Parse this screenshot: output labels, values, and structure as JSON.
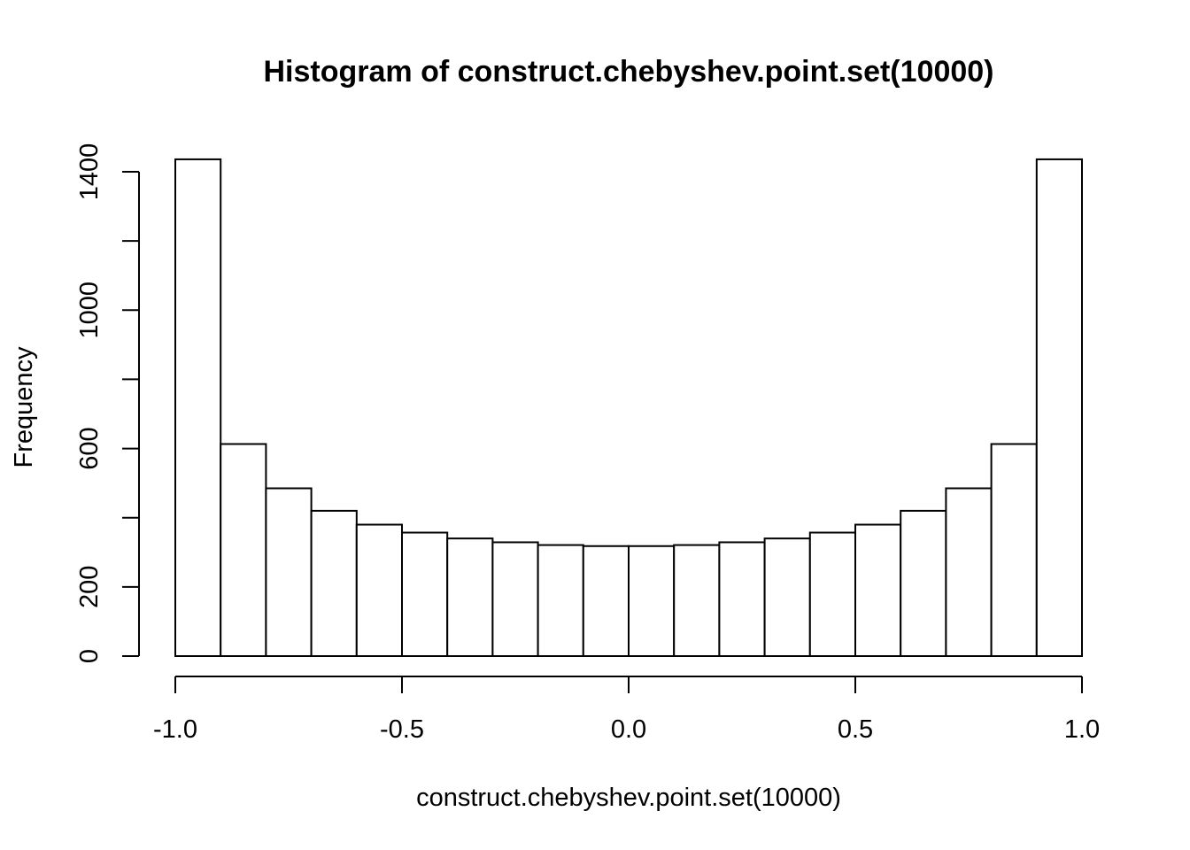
{
  "chart_data": {
    "type": "bar",
    "title": "Histogram of construct.chebyshev.point.set(10000)",
    "xlabel": "construct.chebyshev.point.set(10000)",
    "ylabel": "Frequency",
    "bin_edges": [
      -1.0,
      -0.9,
      -0.8,
      -0.7,
      -0.6,
      -0.5,
      -0.4,
      -0.3,
      -0.2,
      -0.1,
      0.0,
      0.1,
      0.2,
      0.3,
      0.4,
      0.5,
      0.6,
      0.7,
      0.8,
      0.9,
      1.0
    ],
    "values": [
      1436,
      613,
      485,
      420,
      380,
      357,
      340,
      329,
      321,
      318,
      318,
      321,
      329,
      340,
      357,
      380,
      420,
      485,
      613,
      1436
    ],
    "xlim": [
      -1.0,
      1.0
    ],
    "ylim": [
      0,
      1400
    ],
    "x_ticks": [
      -1.0,
      -0.5,
      0.0,
      0.5,
      1.0
    ],
    "x_tick_labels": [
      "-1.0",
      "-0.5",
      "0.0",
      "0.5",
      "1.0"
    ],
    "y_ticks": [
      0,
      200,
      400,
      600,
      800,
      1000,
      1200,
      1400
    ],
    "y_tick_labels": [
      "0",
      "200",
      "",
      "600",
      "",
      "1000",
      "",
      "1400"
    ],
    "grid": false,
    "bar_fill": "#ffffff",
    "bar_stroke": "#000000"
  }
}
